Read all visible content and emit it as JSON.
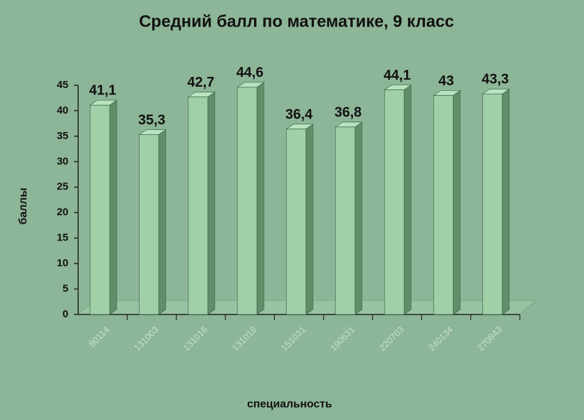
{
  "chart_data": {
    "type": "bar",
    "title": "Средний балл по математике, 9 класс",
    "x_label": "специальность",
    "y_label": "баллы",
    "categories": [
      "80114",
      "131003",
      "131016",
      "131018",
      "151031",
      "190631",
      "220703",
      "240134",
      "270843"
    ],
    "values": [
      41.1,
      35.3,
      42.7,
      44.6,
      36.4,
      36.8,
      44.1,
      43,
      43.3
    ],
    "value_labels": [
      "41,1",
      "35,3",
      "42,7",
      "44,6",
      "36,4",
      "36,8",
      "44,1",
      "43",
      "43,3"
    ],
    "color": "#9fd0a8",
    "ylim": [
      0,
      45
    ],
    "yticks": [
      0,
      5,
      10,
      15,
      20,
      25,
      30,
      35,
      40,
      45
    ]
  }
}
